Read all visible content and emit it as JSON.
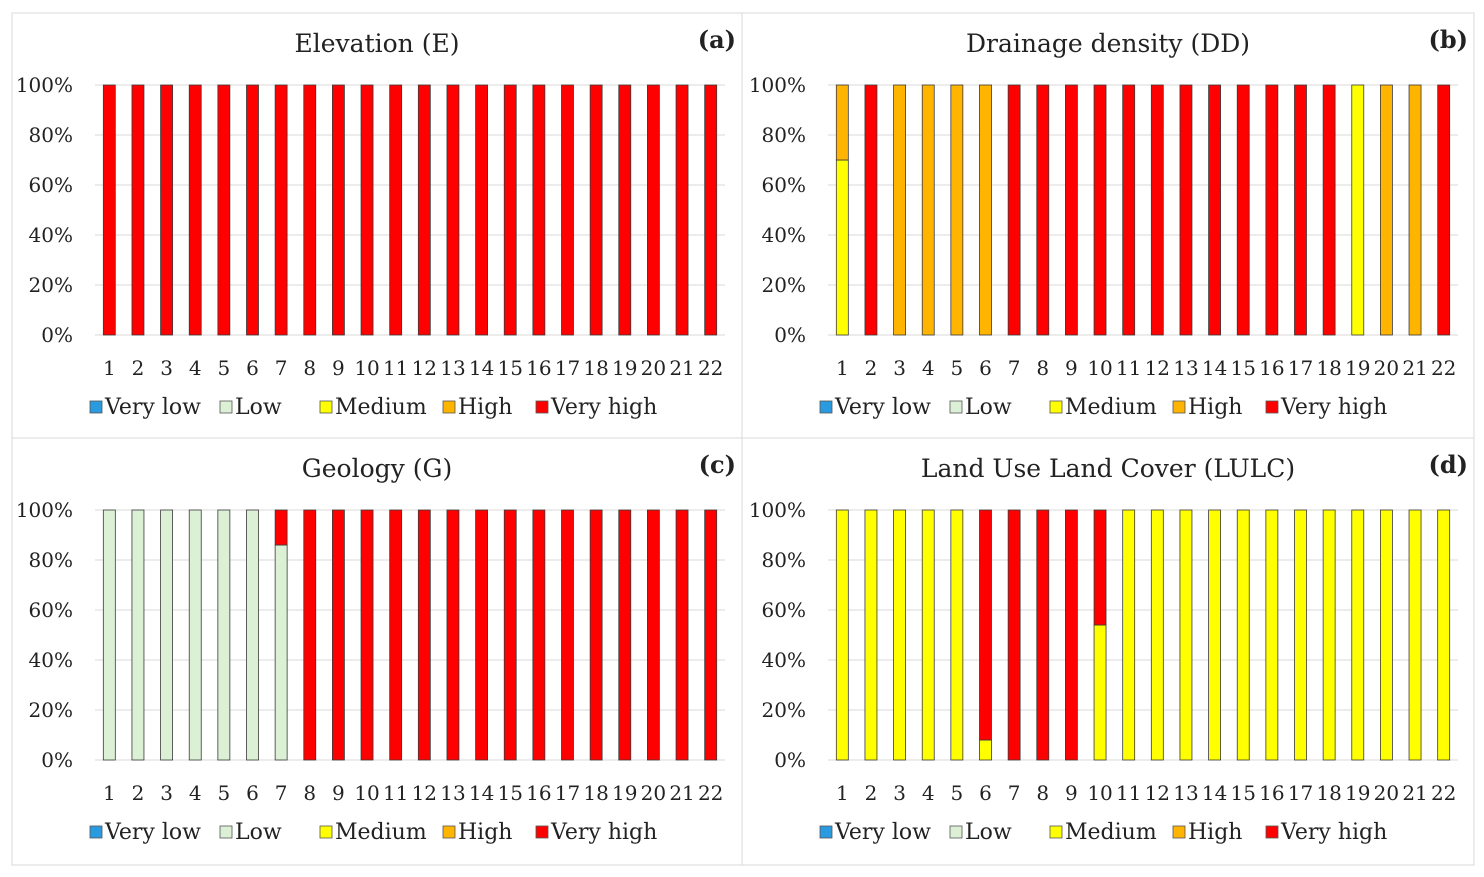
{
  "colors": {
    "very_low": "#2a9be0",
    "low": "#dbf0d5",
    "medium": "#ffff00",
    "high": "#ffb400",
    "very_high": "#ff0000",
    "grid": "#d9d9d9",
    "border": "#d9d9d9"
  },
  "chart_data": [
    {
      "type": "bar",
      "stacked": true,
      "title": "Elevation (E)",
      "panel_label": "(a)",
      "categories": [
        "1",
        "2",
        "3",
        "4",
        "5",
        "6",
        "7",
        "8",
        "9",
        "10",
        "11",
        "12",
        "13",
        "14",
        "15",
        "16",
        "17",
        "18",
        "19",
        "20",
        "21",
        "22"
      ],
      "y_ticks": [
        "0%",
        "20%",
        "40%",
        "60%",
        "80%",
        "100%"
      ],
      "ylim": [
        0,
        100
      ],
      "legend_position": "bottom",
      "series": [
        {
          "name": "Very low",
          "key": "very_low",
          "values": [
            0,
            0,
            0,
            0,
            0,
            0,
            0,
            0,
            0,
            0,
            0,
            0,
            0,
            0,
            0,
            0,
            0,
            0,
            0,
            0,
            0,
            0
          ]
        },
        {
          "name": "Low",
          "key": "low",
          "values": [
            0,
            0,
            0,
            0,
            0,
            0,
            0,
            0,
            0,
            0,
            0,
            0,
            0,
            0,
            0,
            0,
            0,
            0,
            0,
            0,
            0,
            0
          ]
        },
        {
          "name": "Medium",
          "key": "medium",
          "values": [
            0,
            0,
            0,
            0,
            0,
            0,
            0,
            0,
            0,
            0,
            0,
            0,
            0,
            0,
            0,
            0,
            0,
            0,
            0,
            0,
            0,
            0
          ]
        },
        {
          "name": "High",
          "key": "high",
          "values": [
            0,
            0,
            0,
            0,
            0,
            0,
            0,
            0,
            0,
            0,
            0,
            0,
            0,
            0,
            0,
            0,
            0,
            0,
            0,
            0,
            0,
            0
          ]
        },
        {
          "name": "Very high",
          "key": "very_high",
          "values": [
            100,
            100,
            100,
            100,
            100,
            100,
            100,
            100,
            100,
            100,
            100,
            100,
            100,
            100,
            100,
            100,
            100,
            100,
            100,
            100,
            100,
            100
          ]
        }
      ]
    },
    {
      "type": "bar",
      "stacked": true,
      "title": "Drainage density (DD)",
      "panel_label": "(b)",
      "categories": [
        "1",
        "2",
        "3",
        "4",
        "5",
        "6",
        "7",
        "8",
        "9",
        "10",
        "11",
        "12",
        "13",
        "14",
        "15",
        "16",
        "17",
        "18",
        "19",
        "20",
        "21",
        "22"
      ],
      "y_ticks": [
        "0%",
        "20%",
        "40%",
        "60%",
        "80%",
        "100%"
      ],
      "ylim": [
        0,
        100
      ],
      "legend_position": "bottom",
      "series": [
        {
          "name": "Very low",
          "key": "very_low",
          "values": [
            0,
            0,
            0,
            0,
            0,
            0,
            0,
            0,
            0,
            0,
            0,
            0,
            0,
            0,
            0,
            0,
            0,
            0,
            0,
            0,
            0,
            0
          ]
        },
        {
          "name": "Low",
          "key": "low",
          "values": [
            0,
            0,
            0,
            0,
            0,
            0,
            0,
            0,
            0,
            0,
            0,
            0,
            0,
            0,
            0,
            0,
            0,
            0,
            0,
            0,
            0,
            0
          ]
        },
        {
          "name": "Medium",
          "key": "medium",
          "values": [
            70,
            0,
            0,
            0,
            0,
            0,
            0,
            0,
            0,
            0,
            0,
            0,
            0,
            0,
            0,
            0,
            0,
            0,
            100,
            0,
            0,
            0
          ]
        },
        {
          "name": "High",
          "key": "high",
          "values": [
            30,
            0,
            100,
            100,
            100,
            100,
            0,
            0,
            0,
            0,
            0,
            0,
            0,
            0,
            0,
            0,
            0,
            0,
            0,
            100,
            100,
            0
          ]
        },
        {
          "name": "Very high",
          "key": "very_high",
          "values": [
            0,
            100,
            0,
            0,
            0,
            0,
            100,
            100,
            100,
            100,
            100,
            100,
            100,
            100,
            100,
            100,
            100,
            100,
            0,
            0,
            0,
            100
          ]
        }
      ]
    },
    {
      "type": "bar",
      "stacked": true,
      "title": "Geology (G)",
      "panel_label": "(c)",
      "categories": [
        "1",
        "2",
        "3",
        "4",
        "5",
        "6",
        "7",
        "8",
        "9",
        "10",
        "11",
        "12",
        "13",
        "14",
        "15",
        "16",
        "17",
        "18",
        "19",
        "20",
        "21",
        "22"
      ],
      "y_ticks": [
        "0%",
        "20%",
        "40%",
        "60%",
        "80%",
        "100%"
      ],
      "ylim": [
        0,
        100
      ],
      "legend_position": "bottom",
      "series": [
        {
          "name": "Very low",
          "key": "very_low",
          "values": [
            0,
            0,
            0,
            0,
            0,
            0,
            0,
            0,
            0,
            0,
            0,
            0,
            0,
            0,
            0,
            0,
            0,
            0,
            0,
            0,
            0,
            0
          ]
        },
        {
          "name": "Low",
          "key": "low",
          "values": [
            100,
            100,
            100,
            100,
            100,
            100,
            86,
            0,
            0,
            0,
            0,
            0,
            0,
            0,
            0,
            0,
            0,
            0,
            0,
            0,
            0,
            0
          ]
        },
        {
          "name": "Medium",
          "key": "medium",
          "values": [
            0,
            0,
            0,
            0,
            0,
            0,
            0,
            0,
            0,
            0,
            0,
            0,
            0,
            0,
            0,
            0,
            0,
            0,
            0,
            0,
            0,
            0
          ]
        },
        {
          "name": "High",
          "key": "high",
          "values": [
            0,
            0,
            0,
            0,
            0,
            0,
            0,
            0,
            0,
            0,
            0,
            0,
            0,
            0,
            0,
            0,
            0,
            0,
            0,
            0,
            0,
            0
          ]
        },
        {
          "name": "Very high",
          "key": "very_high",
          "values": [
            0,
            0,
            0,
            0,
            0,
            0,
            14,
            100,
            100,
            100,
            100,
            100,
            100,
            100,
            100,
            100,
            100,
            100,
            100,
            100,
            100,
            100
          ]
        }
      ]
    },
    {
      "type": "bar",
      "stacked": true,
      "title": "Land Use Land Cover (LULC)",
      "panel_label": "(d)",
      "categories": [
        "1",
        "2",
        "3",
        "4",
        "5",
        "6",
        "7",
        "8",
        "9",
        "10",
        "11",
        "12",
        "13",
        "14",
        "15",
        "16",
        "17",
        "18",
        "19",
        "20",
        "21",
        "22"
      ],
      "y_ticks": [
        "0%",
        "20%",
        "40%",
        "60%",
        "80%",
        "100%"
      ],
      "ylim": [
        0,
        100
      ],
      "legend_position": "bottom",
      "series": [
        {
          "name": "Very low",
          "key": "very_low",
          "values": [
            0,
            0,
            0,
            0,
            0,
            0,
            0,
            0,
            0,
            0,
            0,
            0,
            0,
            0,
            0,
            0,
            0,
            0,
            0,
            0,
            0,
            0
          ]
        },
        {
          "name": "Low",
          "key": "low",
          "values": [
            0,
            0,
            0,
            0,
            0,
            0,
            0,
            0,
            0,
            0,
            0,
            0,
            0,
            0,
            0,
            0,
            0,
            0,
            0,
            0,
            0,
            0
          ]
        },
        {
          "name": "Medium",
          "key": "medium",
          "values": [
            100,
            100,
            100,
            100,
            100,
            8,
            0,
            0,
            0,
            54,
            100,
            100,
            100,
            100,
            100,
            100,
            100,
            100,
            100,
            100,
            100,
            100
          ]
        },
        {
          "name": "High",
          "key": "high",
          "values": [
            0,
            0,
            0,
            0,
            0,
            0,
            0,
            0,
            0,
            0,
            0,
            0,
            0,
            0,
            0,
            0,
            0,
            0,
            0,
            0,
            0,
            0
          ]
        },
        {
          "name": "Very high",
          "key": "very_high",
          "values": [
            0,
            0,
            0,
            0,
            0,
            92,
            100,
            100,
            100,
            46,
            0,
            0,
            0,
            0,
            0,
            0,
            0,
            0,
            0,
            0,
            0,
            0
          ]
        }
      ]
    }
  ]
}
